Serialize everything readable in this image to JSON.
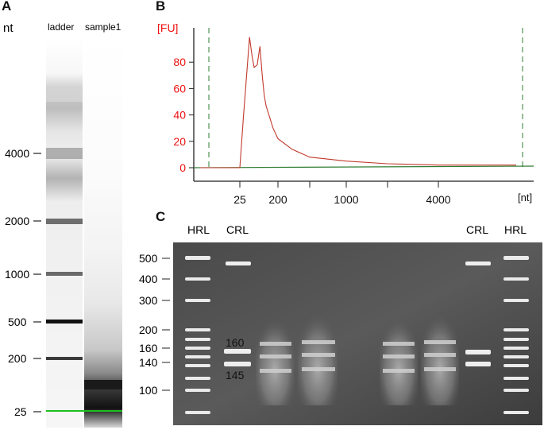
{
  "panels": [
    {
      "letter": "A"
    },
    {
      "letter": "B"
    },
    {
      "letter": "C"
    }
  ],
  "panel_a": {
    "unit_label": "nt",
    "lane_labels": [
      "ladder",
      "sample1"
    ],
    "marker_labels": [
      "4000",
      "2000",
      "1000",
      "500",
      "200",
      "25"
    ]
  },
  "chart_data": {
    "type": "line",
    "title": "",
    "ylabel": "[FU]",
    "xlabel": "[nt]",
    "yticks": [
      0,
      20,
      40,
      60,
      80
    ],
    "xtick_labels": [
      "25",
      "200",
      "1000",
      "4000"
    ],
    "ylim": [
      0,
      100
    ],
    "grid": false,
    "series": [
      {
        "color": "#c0392b",
        "x": [
          25,
          30,
          40,
          45,
          50,
          60,
          70,
          80,
          90,
          100,
          150,
          200,
          300,
          500,
          1000,
          2000,
          4000,
          8000
        ],
        "y": [
          0,
          40,
          99,
          85,
          76,
          78,
          92,
          70,
          55,
          47,
          30,
          22,
          14,
          8,
          5,
          3,
          2,
          2
        ]
      }
    ],
    "colors": {
      "axis_labels": "#e11",
      "baseline": "#2e7d32",
      "markers": "#2e7d32"
    }
  },
  "panel_c": {
    "top_labels": [
      "HRL",
      "CRL",
      "CRL",
      "HRL"
    ],
    "size_labels": [
      "500",
      "400",
      "300",
      "200",
      "160",
      "140",
      "100"
    ],
    "inner_labels": [
      "160",
      "145"
    ]
  }
}
